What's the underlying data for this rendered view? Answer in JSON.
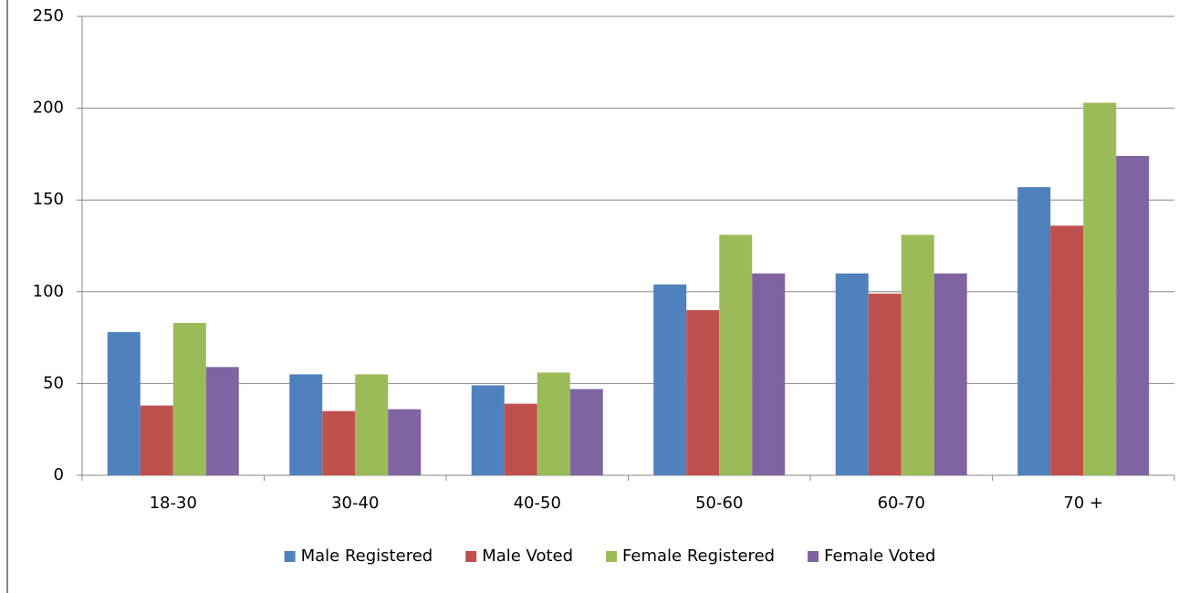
{
  "chart_data": {
    "type": "bar",
    "categories": [
      "18-30",
      "30-40",
      "40-50",
      "50-60",
      "60-70",
      "70 +"
    ],
    "series": [
      {
        "name": "Male Registered",
        "color": "#4f81bd",
        "values": [
          78,
          55,
          49,
          104,
          110,
          157
        ]
      },
      {
        "name": "Male Voted",
        "color": "#c0504d",
        "values": [
          38,
          35,
          39,
          90,
          99,
          136
        ]
      },
      {
        "name": "Female Registered",
        "color": "#9bbb59",
        "values": [
          83,
          55,
          56,
          131,
          131,
          203
        ]
      },
      {
        "name": "Female Voted",
        "color": "#8064a2",
        "values": [
          59,
          36,
          47,
          110,
          110,
          174
        ]
      }
    ],
    "ylim": [
      0,
      250
    ],
    "yticks": [
      0,
      50,
      100,
      150,
      200,
      250
    ],
    "grid": true,
    "legend": "bottom"
  }
}
